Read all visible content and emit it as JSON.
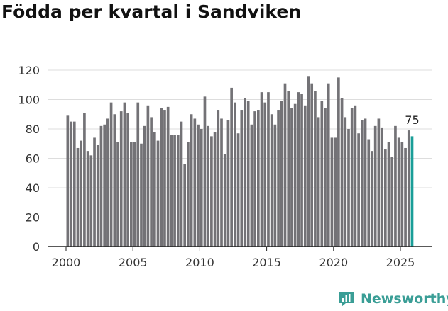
{
  "title": "Födda per kvartal i Sandviken",
  "brand": {
    "name": "Newsworthy"
  },
  "colors": {
    "bar": "#737276",
    "highlight": "#1a9e98",
    "grid": "#dddddd",
    "axis": "#222222",
    "text": "#333333"
  },
  "chart_data": {
    "type": "bar",
    "title": "Födda per kvartal i Sandviken",
    "xlabel": "",
    "ylabel": "",
    "ylim": [
      0,
      120
    ],
    "yticks": [
      0,
      20,
      40,
      60,
      80,
      100,
      120
    ],
    "xticks": [
      "2000",
      "2005",
      "2010",
      "2015",
      "2020",
      "2025"
    ],
    "grid": true,
    "start": "2000 Q1",
    "values": [
      89,
      85,
      85,
      67,
      72,
      91,
      65,
      62,
      74,
      69,
      82,
      83,
      87,
      98,
      90,
      71,
      92,
      98,
      91,
      71,
      71,
      98,
      70,
      82,
      96,
      88,
      78,
      72,
      94,
      93,
      95,
      76,
      76,
      76,
      85,
      56,
      71,
      90,
      87,
      83,
      80,
      102,
      82,
      75,
      78,
      93,
      87,
      63,
      86,
      108,
      98,
      77,
      93,
      101,
      99,
      83,
      92,
      93,
      105,
      98,
      105,
      90,
      83,
      93,
      99,
      111,
      106,
      94,
      97,
      105,
      104,
      96,
      116,
      111,
      106,
      88,
      99,
      94,
      111,
      74,
      74,
      115,
      101,
      88,
      80,
      94,
      96,
      77,
      86,
      87,
      73,
      65,
      82,
      87,
      81,
      66,
      71,
      61,
      82,
      74,
      71,
      67,
      79,
      75
    ],
    "highlight_label": "75"
  }
}
